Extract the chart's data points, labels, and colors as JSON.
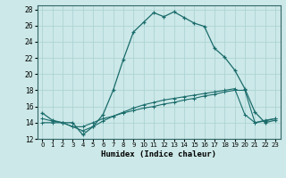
{
  "title": "",
  "xlabel": "Humidex (Indice chaleur)",
  "xlim": [
    -0.5,
    23.5
  ],
  "ylim": [
    12,
    28.5
  ],
  "yticks": [
    12,
    14,
    16,
    18,
    20,
    22,
    24,
    26,
    28
  ],
  "xticks": [
    0,
    1,
    2,
    3,
    4,
    5,
    6,
    7,
    8,
    9,
    10,
    11,
    12,
    13,
    14,
    15,
    16,
    17,
    18,
    19,
    20,
    21,
    22,
    23
  ],
  "background_color": "#cce8e8",
  "grid_color": "#a8d0d0",
  "line_color": "#1a6b6b",
  "line1_x": [
    0,
    1,
    2,
    3,
    4,
    5,
    6,
    7,
    8,
    9,
    10,
    11,
    12,
    13,
    14,
    15,
    16,
    17,
    18,
    19,
    20,
    21,
    22,
    23
  ],
  "line1_y": [
    15.2,
    14.3,
    14.0,
    14.0,
    12.5,
    13.5,
    15.0,
    18.0,
    21.8,
    25.2,
    26.4,
    27.6,
    27.1,
    27.7,
    27.0,
    26.3,
    25.9,
    23.2,
    22.1,
    20.5,
    18.2,
    15.3,
    14.0,
    14.3
  ],
  "line2_x": [
    0,
    1,
    2,
    3,
    4,
    5,
    6,
    7,
    8,
    9,
    10,
    11,
    12,
    13,
    14,
    15,
    16,
    17,
    18,
    19,
    20,
    21,
    22,
    23
  ],
  "line2_y": [
    14.0,
    14.0,
    14.0,
    13.5,
    13.5,
    14.0,
    14.5,
    14.8,
    15.2,
    15.5,
    15.8,
    16.0,
    16.3,
    16.5,
    16.8,
    17.0,
    17.3,
    17.5,
    17.8,
    18.0,
    18.0,
    14.0,
    14.2,
    14.5
  ],
  "line3_x": [
    0,
    1,
    2,
    3,
    4,
    5,
    6,
    7,
    8,
    9,
    10,
    11,
    12,
    13,
    14,
    15,
    16,
    17,
    18,
    19,
    20,
    21,
    22,
    23
  ],
  "line3_y": [
    14.5,
    14.2,
    14.0,
    13.5,
    13.0,
    13.5,
    14.2,
    14.8,
    15.3,
    15.8,
    16.2,
    16.5,
    16.8,
    17.0,
    17.2,
    17.4,
    17.6,
    17.8,
    18.0,
    18.2,
    15.0,
    14.0,
    14.3,
    14.5
  ]
}
